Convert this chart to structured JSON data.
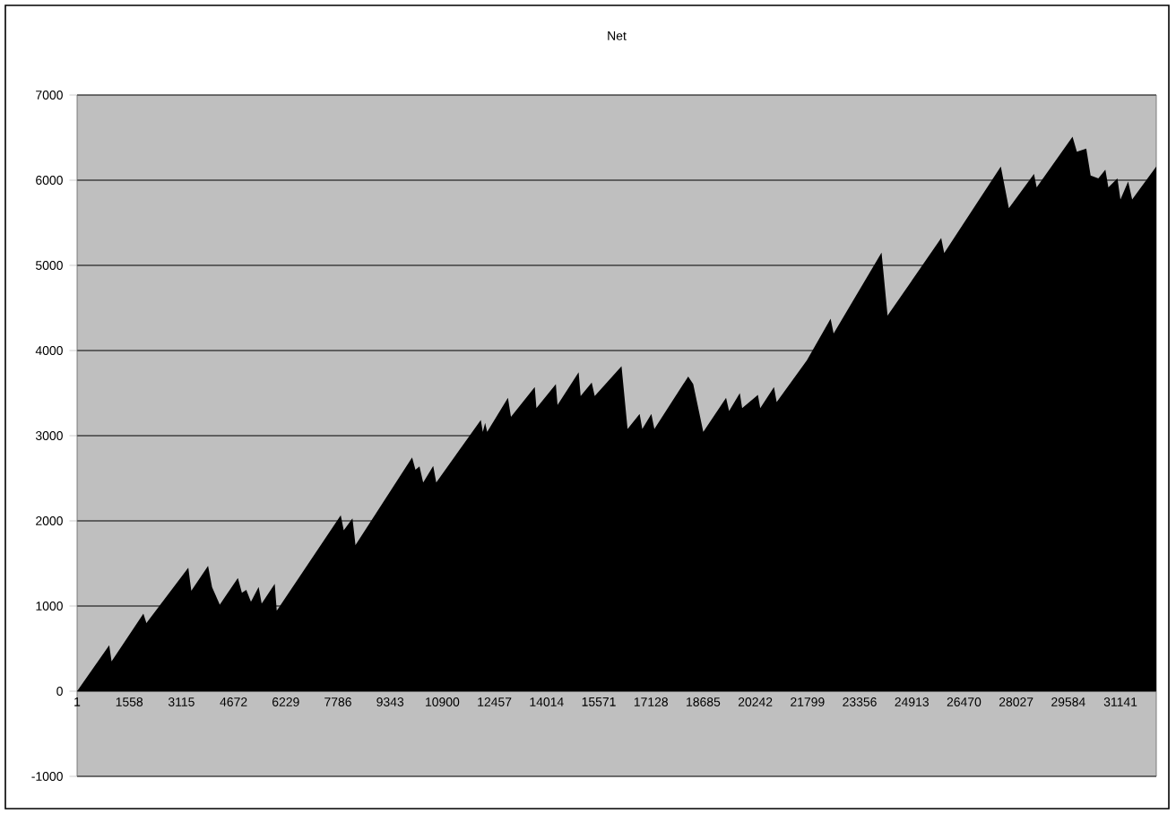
{
  "chart_data": {
    "type": "area",
    "title": "Net",
    "color": "#000000",
    "grid": "y",
    "xlim": [
      1,
      32210
    ],
    "ylim": [
      -1000,
      7000
    ],
    "xticks": [
      1,
      1558,
      3115,
      4672,
      6229,
      7786,
      9343,
      10900,
      12457,
      14014,
      15571,
      17128,
      18685,
      20242,
      21799,
      23356,
      24913,
      26470,
      28027,
      29584,
      31141
    ],
    "yticks": [
      -1000,
      0,
      1000,
      2000,
      3000,
      4000,
      5000,
      6000,
      7000
    ],
    "x": [
      1,
      960,
      1030,
      1980,
      2070,
      3320,
      3410,
      3910,
      4030,
      4260,
      4800,
      4920,
      5050,
      5190,
      5420,
      5510,
      5900,
      5960,
      7870,
      7960,
      8220,
      8310,
      10000,
      10100,
      10220,
      10330,
      10630,
      10720,
      12050,
      12110,
      12180,
      12240,
      12860,
      12950,
      13660,
      13710,
      14290,
      14340,
      14970,
      15030,
      15360,
      15450,
      16250,
      16430,
      16790,
      16870,
      17140,
      17230,
      18240,
      18390,
      18690,
      19370,
      19460,
      19780,
      19850,
      20320,
      20390,
      20800,
      20880,
      21780,
      22490,
      22580,
      24010,
      24190,
      25790,
      25880,
      27570,
      27810,
      28560,
      28640,
      29710,
      29840,
      30120,
      30250,
      30480,
      30690,
      30780,
      31050,
      31140,
      31370,
      31490,
      32210
    ],
    "values": [
      0,
      540,
      350,
      910,
      800,
      1450,
      1180,
      1470,
      1220,
      1015,
      1330,
      1155,
      1190,
      1050,
      1225,
      1030,
      1260,
      945,
      2065,
      1890,
      2030,
      1715,
      2745,
      2600,
      2640,
      2450,
      2645,
      2450,
      3185,
      3045,
      3150,
      3045,
      3445,
      3220,
      3570,
      3325,
      3605,
      3360,
      3745,
      3465,
      3625,
      3465,
      3815,
      3080,
      3255,
      3080,
      3255,
      3080,
      3695,
      3605,
      3045,
      3445,
      3290,
      3500,
      3325,
      3480,
      3325,
      3570,
      3395,
      3885,
      4375,
      4200,
      5150,
      4410,
      5320,
      5145,
      6160,
      5670,
      6075,
      5915,
      6510,
      6335,
      6370,
      6055,
      6020,
      6125,
      5915,
      6020,
      5775,
      5985,
      5775,
      6160
    ]
  }
}
